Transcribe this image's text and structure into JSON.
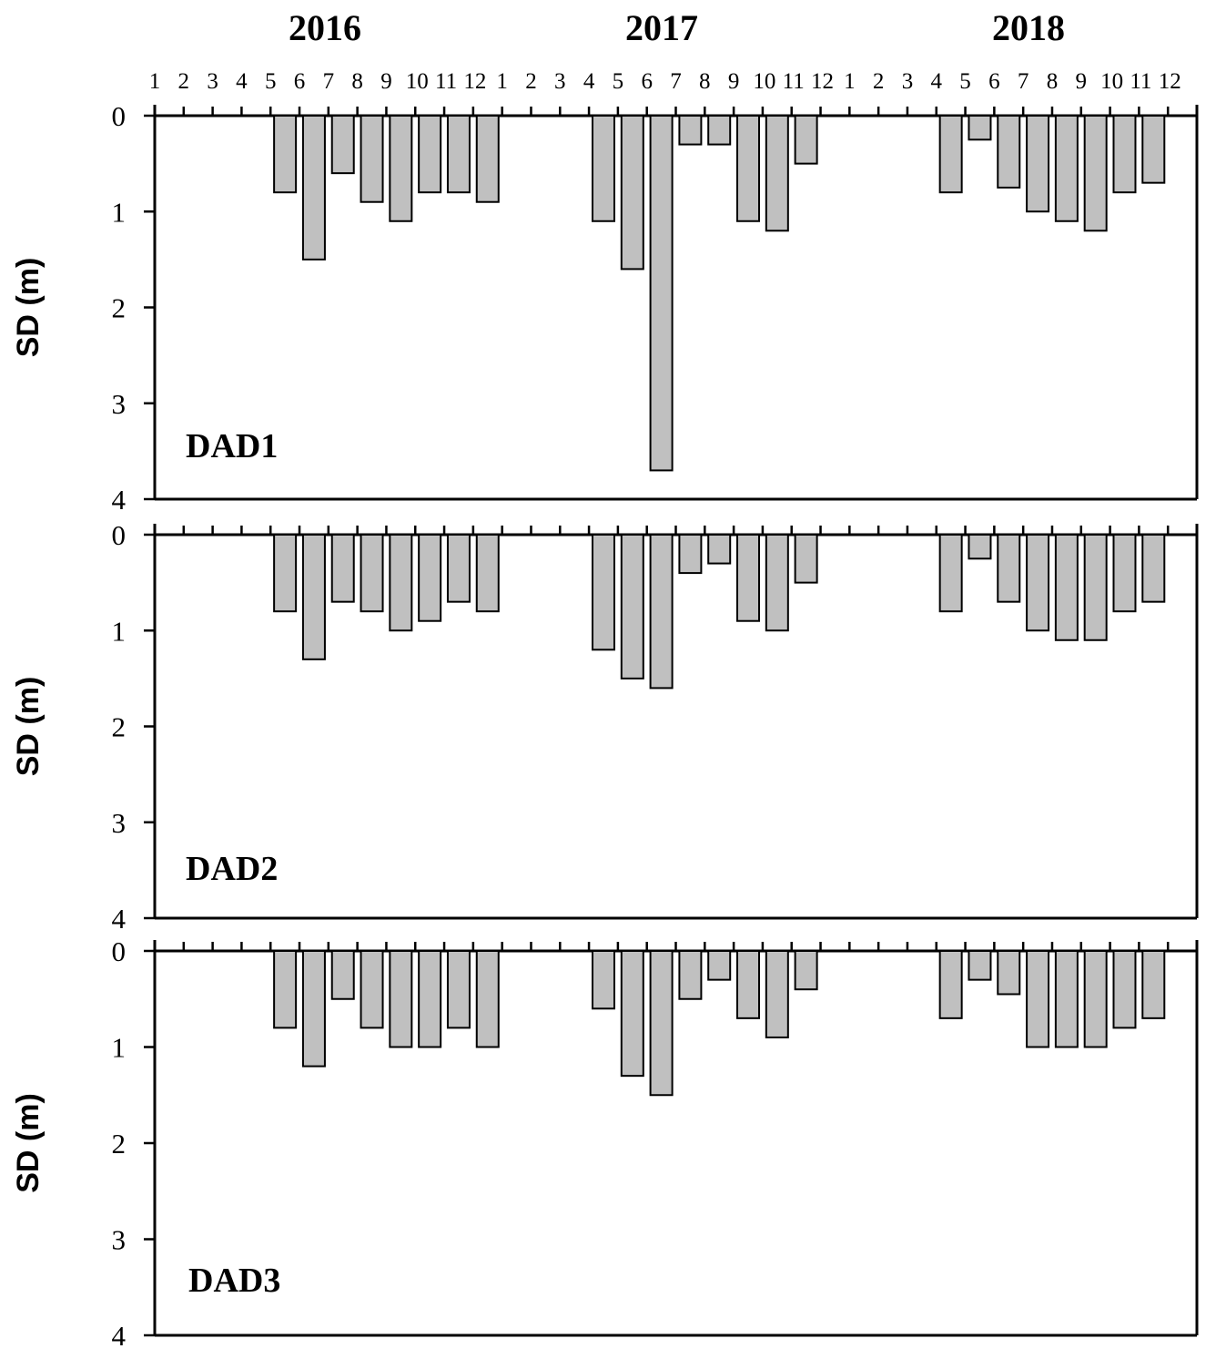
{
  "chart_data": {
    "type": "bar",
    "years": [
      "2016",
      "2017",
      "2018"
    ],
    "months": [
      "1",
      "2",
      "3",
      "4",
      "5",
      "6",
      "7",
      "8",
      "9",
      "10",
      "11",
      "12"
    ],
    "ylabel": "SD (m)",
    "ylim": [
      0,
      4
    ],
    "yticks": [
      "0",
      "1",
      "2",
      "3",
      "4"
    ],
    "y_inverted": true,
    "bar_color": "#c0c0c0",
    "panels": [
      {
        "label": "DAD1",
        "values": [
          [
            null,
            null,
            null,
            null,
            0.8,
            1.5,
            0.6,
            0.9,
            1.1,
            0.8,
            0.8,
            0.9
          ],
          [
            null,
            null,
            null,
            1.1,
            1.6,
            3.7,
            0.3,
            0.3,
            1.1,
            1.2,
            0.5,
            null
          ],
          [
            null,
            null,
            null,
            0.8,
            0.25,
            0.75,
            1.0,
            1.1,
            1.2,
            0.8,
            0.7,
            null
          ]
        ]
      },
      {
        "label": "DAD2",
        "values": [
          [
            null,
            null,
            null,
            null,
            0.8,
            1.3,
            0.7,
            0.8,
            1.0,
            0.9,
            0.7,
            0.8
          ],
          [
            null,
            null,
            null,
            1.2,
            1.5,
            1.6,
            0.4,
            0.3,
            0.9,
            1.0,
            0.5,
            null
          ],
          [
            null,
            null,
            null,
            0.8,
            0.25,
            0.7,
            1.0,
            1.1,
            1.1,
            0.8,
            0.7,
            null
          ]
        ]
      },
      {
        "label": "DAD3",
        "values": [
          [
            null,
            null,
            null,
            null,
            0.8,
            1.2,
            0.5,
            0.8,
            1.0,
            1.0,
            0.8,
            1.0
          ],
          [
            null,
            null,
            null,
            0.6,
            1.3,
            1.5,
            0.5,
            0.3,
            0.7,
            0.9,
            0.4,
            null
          ],
          [
            null,
            null,
            null,
            0.7,
            0.3,
            0.45,
            1.0,
            1.0,
            1.0,
            0.8,
            0.7,
            null
          ]
        ]
      }
    ]
  }
}
